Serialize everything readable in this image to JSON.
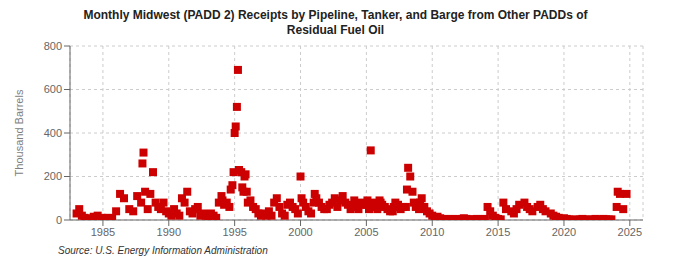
{
  "chart_data": {
    "type": "scatter",
    "title": "Monthly Midwest (PADD 2) Receipts by Pipeline, Tanker, and Barge from Other PADDs of\nResidual Fuel Oil",
    "y_label": "Thousand Barrels",
    "annotations": [
      "Source: U.S. Energy Information Administration"
    ],
    "color": "#cc0000",
    "marker": "square",
    "grid": true,
    "xlim": [
      1982.5,
      2026.0
    ],
    "xticks": [
      1985,
      1990,
      1995,
      2000,
      2005,
      2010,
      2015,
      2020,
      2025
    ],
    "ylim": [
      0,
      800
    ],
    "yticks": [
      0,
      200,
      400,
      600,
      800
    ],
    "x": [
      1983.0,
      1983.2,
      1983.4,
      1983.6,
      1983.8,
      1984.0,
      1984.3,
      1984.6,
      1984.9,
      1985.1,
      1985.4,
      1985.7,
      1986.0,
      1986.3,
      1986.6,
      1987.0,
      1987.3,
      1987.6,
      1987.9,
      1988.0,
      1988.08,
      1988.2,
      1988.4,
      1988.6,
      1988.8,
      1989.0,
      1989.2,
      1989.4,
      1989.6,
      1989.8,
      1990.0,
      1990.2,
      1990.4,
      1990.6,
      1990.8,
      1991.0,
      1991.2,
      1991.4,
      1991.6,
      1991.8,
      1992.0,
      1992.2,
      1992.4,
      1992.6,
      1992.8,
      1993.0,
      1993.2,
      1993.4,
      1993.6,
      1993.8,
      1994.0,
      1994.08,
      1994.2,
      1994.4,
      1994.6,
      1994.7,
      1994.83,
      1994.917,
      1995.0,
      1995.08,
      1995.17,
      1995.25,
      1995.33,
      1995.5,
      1995.58,
      1995.67,
      1995.75,
      1995.83,
      1995.917,
      1996.0,
      1996.2,
      1996.4,
      1996.6,
      1996.8,
      1997.0,
      1997.2,
      1997.4,
      1997.6,
      1997.8,
      1998.0,
      1998.2,
      1998.4,
      1998.6,
      1998.8,
      1999.0,
      1999.2,
      1999.4,
      1999.6,
      1999.8,
      2000.0,
      2000.08,
      2000.2,
      2000.4,
      2000.6,
      2000.8,
      2001.0,
      2001.08,
      2001.2,
      2001.4,
      2001.6,
      2001.8,
      2002.0,
      2002.2,
      2002.4,
      2002.6,
      2002.8,
      2003.0,
      2003.2,
      2003.4,
      2003.6,
      2003.8,
      2004.0,
      2004.08,
      2004.2,
      2004.4,
      2004.6,
      2004.8,
      2005.0,
      2005.08,
      2005.2,
      2005.33,
      2005.5,
      2005.6,
      2005.7,
      2005.83,
      2005.917,
      2006.0,
      2006.08,
      2006.2,
      2006.4,
      2006.6,
      2006.8,
      2007.0,
      2007.08,
      2007.2,
      2007.4,
      2007.6,
      2007.8,
      2008.0,
      2008.08,
      2008.17,
      2008.33,
      2008.5,
      2008.6,
      2008.75,
      2009.0,
      2009.08,
      2009.2,
      2009.4,
      2009.6,
      2009.8,
      2010.0,
      2010.2,
      2010.4,
      2010.6,
      2011.0,
      2011.2,
      2011.4,
      2011.6,
      2011.8,
      2012.0,
      2012.2,
      2012.4,
      2012.6,
      2012.8,
      2013.0,
      2013.2,
      2013.4,
      2013.6,
      2013.8,
      2014.0,
      2014.2,
      2014.4,
      2014.6,
      2014.8,
      2015.0,
      2015.2,
      2015.4,
      2015.6,
      2016.0,
      2016.2,
      2016.4,
      2016.6,
      2017.0,
      2017.2,
      2017.4,
      2017.6,
      2018.0,
      2018.2,
      2018.4,
      2018.6,
      2019.0,
      2019.2,
      2019.4,
      2019.6,
      2020.0,
      2020.2,
      2020.4,
      2020.6,
      2021.0,
      2021.2,
      2021.4,
      2021.6,
      2022.0,
      2022.2,
      2022.4,
      2022.6,
      2023.0,
      2023.2,
      2023.4,
      2023.6,
      2024.0,
      2024.08,
      2024.25,
      2024.5,
      2024.75
    ],
    "values": [
      30,
      50,
      20,
      10,
      5,
      8,
      15,
      20,
      10,
      5,
      10,
      8,
      40,
      120,
      100,
      50,
      40,
      110,
      80,
      260,
      310,
      130,
      50,
      120,
      220,
      80,
      60,
      50,
      80,
      40,
      30,
      20,
      50,
      30,
      20,
      100,
      80,
      130,
      40,
      30,
      50,
      60,
      20,
      30,
      20,
      10,
      30,
      20,
      10,
      80,
      110,
      90,
      70,
      80,
      60,
      140,
      160,
      220,
      400,
      430,
      520,
      690,
      230,
      220,
      150,
      130,
      200,
      210,
      130,
      80,
      90,
      60,
      50,
      30,
      20,
      30,
      20,
      40,
      20,
      80,
      100,
      60,
      30,
      20,
      70,
      80,
      60,
      50,
      30,
      200,
      100,
      80,
      60,
      40,
      30,
      80,
      120,
      100,
      80,
      60,
      50,
      50,
      70,
      80,
      100,
      60,
      90,
      110,
      80,
      70,
      50,
      60,
      90,
      60,
      50,
      80,
      70,
      70,
      90,
      50,
      320,
      60,
      80,
      60,
      50,
      70,
      90,
      80,
      70,
      60,
      50,
      40,
      40,
      60,
      80,
      70,
      50,
      60,
      60,
      140,
      240,
      200,
      130,
      80,
      60,
      50,
      80,
      100,
      60,
      40,
      30,
      20,
      10,
      15,
      8,
      5,
      3,
      2,
      5,
      3,
      2,
      5,
      8,
      5,
      3,
      2,
      3,
      5,
      3,
      2,
      5,
      60,
      40,
      20,
      10,
      5,
      3,
      80,
      50,
      40,
      30,
      50,
      70,
      80,
      60,
      50,
      40,
      60,
      70,
      50,
      40,
      30,
      20,
      15,
      10,
      8,
      5,
      3,
      2,
      2,
      3,
      5,
      3,
      2,
      3,
      5,
      3,
      5,
      3,
      2,
      3,
      60,
      130,
      120,
      50,
      120
    ]
  }
}
